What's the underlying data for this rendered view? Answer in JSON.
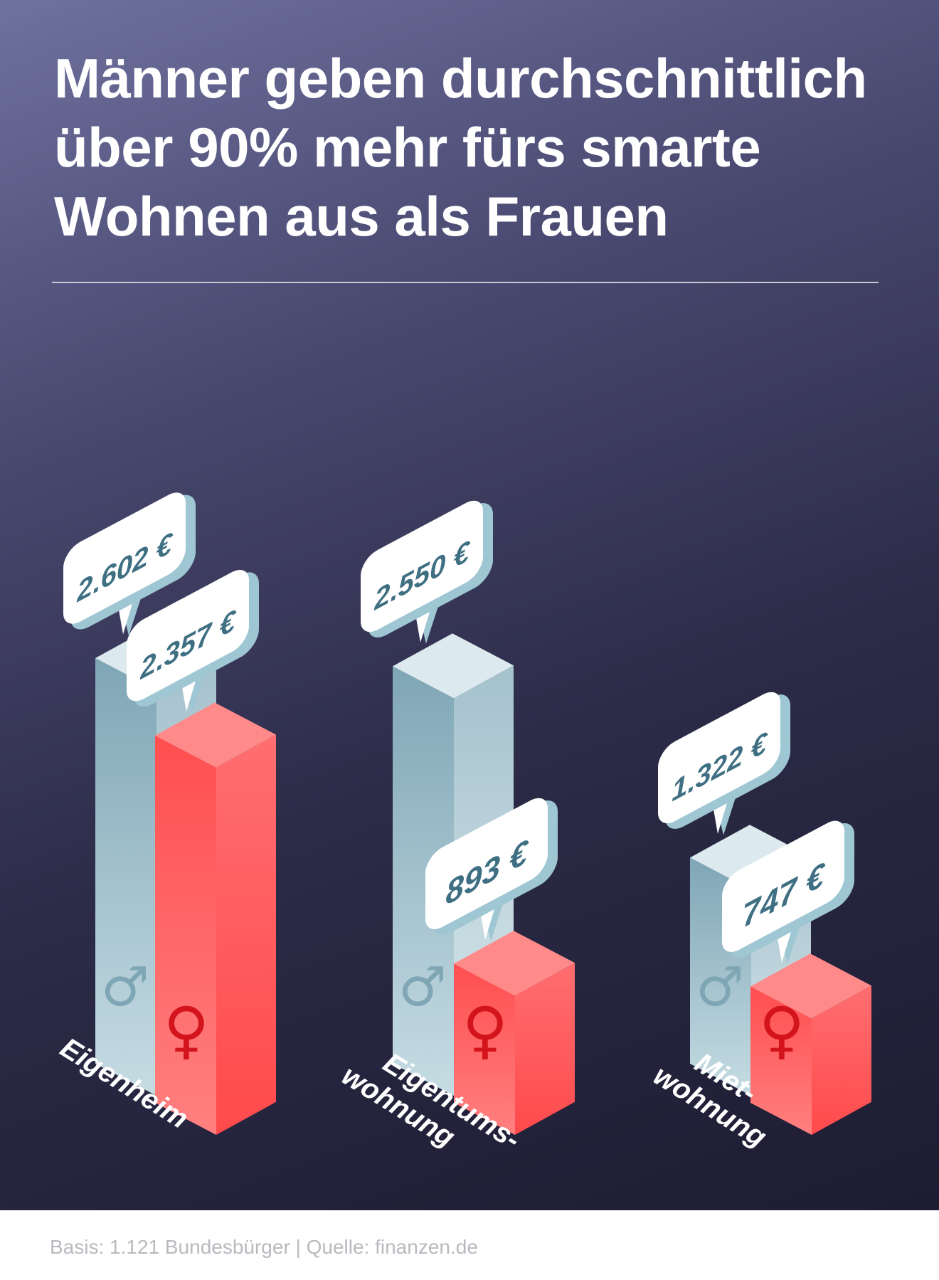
{
  "title": "Männer geben durchschnittlich über 90% mehr fürs smarte Wohnen aus als Frauen",
  "footer": "Basis: 1.121 Bundesbürger | Quelle: finanzen.de",
  "symbols": {
    "male": "♂",
    "female": "♀"
  },
  "colors": {
    "male_front": "#a5c3cd",
    "male_side": "#c9dde4",
    "male_top": "#dceaef",
    "female_front": "#ff6a6a",
    "female_side": "#ff5656",
    "female_top": "#ff8a8a",
    "female_symbol": "#d4141c",
    "male_symbol": "#7fa6b4",
    "bubble": "#ffffff",
    "bubble_edge": "#9fc6d3",
    "value_text": "#3f6f83"
  },
  "chart_data": {
    "type": "bar",
    "title": "Männer geben durchschnittlich über 90% mehr fürs smarte Wohnen aus als Frauen",
    "categories": [
      [
        "Eigenheim"
      ],
      [
        "Eigentums-",
        "wohnung"
      ],
      [
        "Miet-",
        "wohnung"
      ]
    ],
    "series": [
      {
        "key": "male",
        "values": [
          2602,
          2550,
          1322
        ],
        "labels": [
          "2.602 €",
          "2.550 €",
          "1.322 €"
        ]
      },
      {
        "key": "female",
        "values": [
          2357,
          893,
          747
        ],
        "labels": [
          "2.357 €",
          "893 €",
          "747 €"
        ]
      }
    ],
    "unit": "€"
  }
}
